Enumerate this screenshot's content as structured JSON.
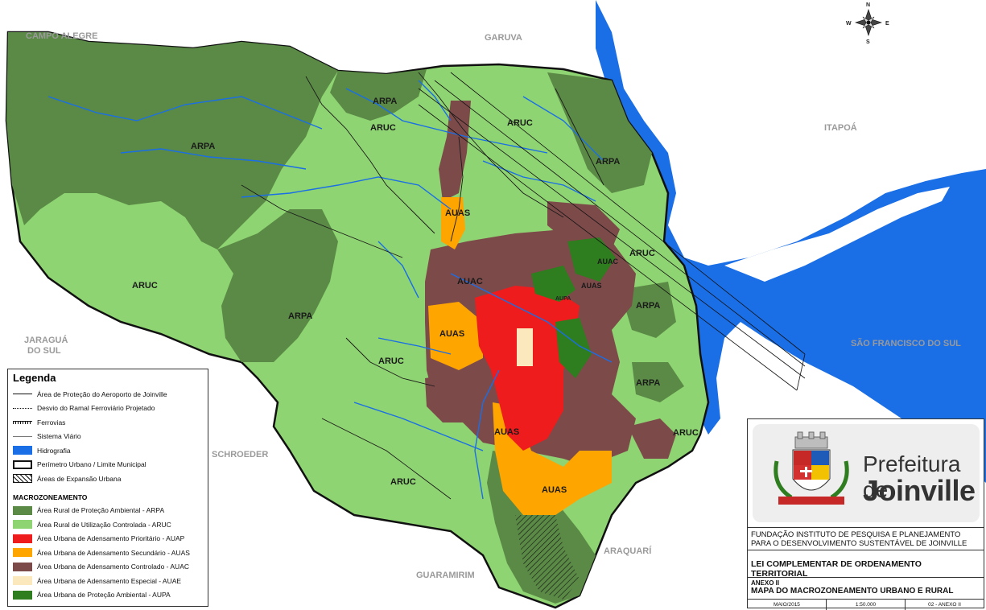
{
  "neighbors": {
    "campo_alegre": "CAMPO ALEGRE",
    "garuva": "GARUVA",
    "itapoa": "ITAPOÁ",
    "jaragua_line1": "JARAGUÁ",
    "jaragua_line2": "DO SUL",
    "sao_francisco": "SÃO FRANCISCO DO SUL",
    "schroeder": "SCHROEDER",
    "araquari": "ARAQUARÍ",
    "guaramirim": "GUARAMIRIM"
  },
  "zone_labels": {
    "arpa_north": "ARPA",
    "arpa_nw": "ARPA",
    "arpa_west": "ARPA",
    "arpa_ne": "ARPA",
    "arpa_east1": "ARPA",
    "arpa_east2": "ARPA",
    "aruc_north1": "ARUC",
    "aruc_north2": "ARUC",
    "aruc_west": "ARUC",
    "aruc_mid": "ARUC",
    "aruc_south": "ARUC",
    "aruc_east": "ARUC",
    "aruc_se": "ARUC",
    "auas_north": "AUAS",
    "auas_west": "AUAS",
    "auas_south1": "AUAS",
    "auas_south2": "AUAS",
    "auac_center": "AUAC",
    "auac_e": "AUAC",
    "auas_e": "AUAS",
    "aupa": "AUPA"
  },
  "compass": {
    "n": "N",
    "s": "S",
    "e": "E",
    "w": "W"
  },
  "legend": {
    "title": "Legenda",
    "items": [
      "Área de Proteção do Aeroporto de Joinville",
      "Desvio do Ramal Ferroviário Projetado",
      "Ferrovias",
      "Sistema Viário",
      "Hidrografia",
      "Perímetro Urbano / Limite Municipal",
      "Áreas de Expansão Urbana"
    ],
    "section": "MACROZONEAMENTO",
    "zones": [
      {
        "label": "Área Rural de Proteção Ambiental - ARPA",
        "color": "#5a8a46"
      },
      {
        "label": "Área Rural de Utilização Controlada - ARUC",
        "color": "#8fd472"
      },
      {
        "label": "Área Urbana de Adensamento Prioritário - AUAP",
        "color": "#ee1c1c"
      },
      {
        "label": "Área Urbana de Adensamento Secundário - AUAS",
        "color": "#ffa500"
      },
      {
        "label": "Área Urbana de Adensamento Controlado - AUAC",
        "color": "#7d4a4a"
      },
      {
        "label": "Área Urbana de Adensamento Especial - AUAE",
        "color": "#fbe8bd"
      },
      {
        "label": "Área Urbana de Proteção Ambiental - AUPA",
        "color": "#2e7d1e"
      }
    ],
    "water_color": "#1a6ee6"
  },
  "titleblock": {
    "logo_line1": "Prefeitura de",
    "logo_line2": "Joinville",
    "institute_line1": "FUNDAÇÃO INSTITUTO DE PESQUISA E PLANEJAMENTO",
    "institute_line2": "PARA O DESENVOLVIMENTO SUSTENTÁVEL DE JOINVILLE",
    "law": "LEI COMPLEMENTAR DE ORDENAMENTO TERRITORIAL",
    "annex": "ANEXO II",
    "map_title": "MAPA DO MACROZONEAMENTO URBANO E RURAL",
    "date": "MAIO/2015",
    "scale": "1:50.000",
    "sheet": "02 - ANEXO II"
  }
}
